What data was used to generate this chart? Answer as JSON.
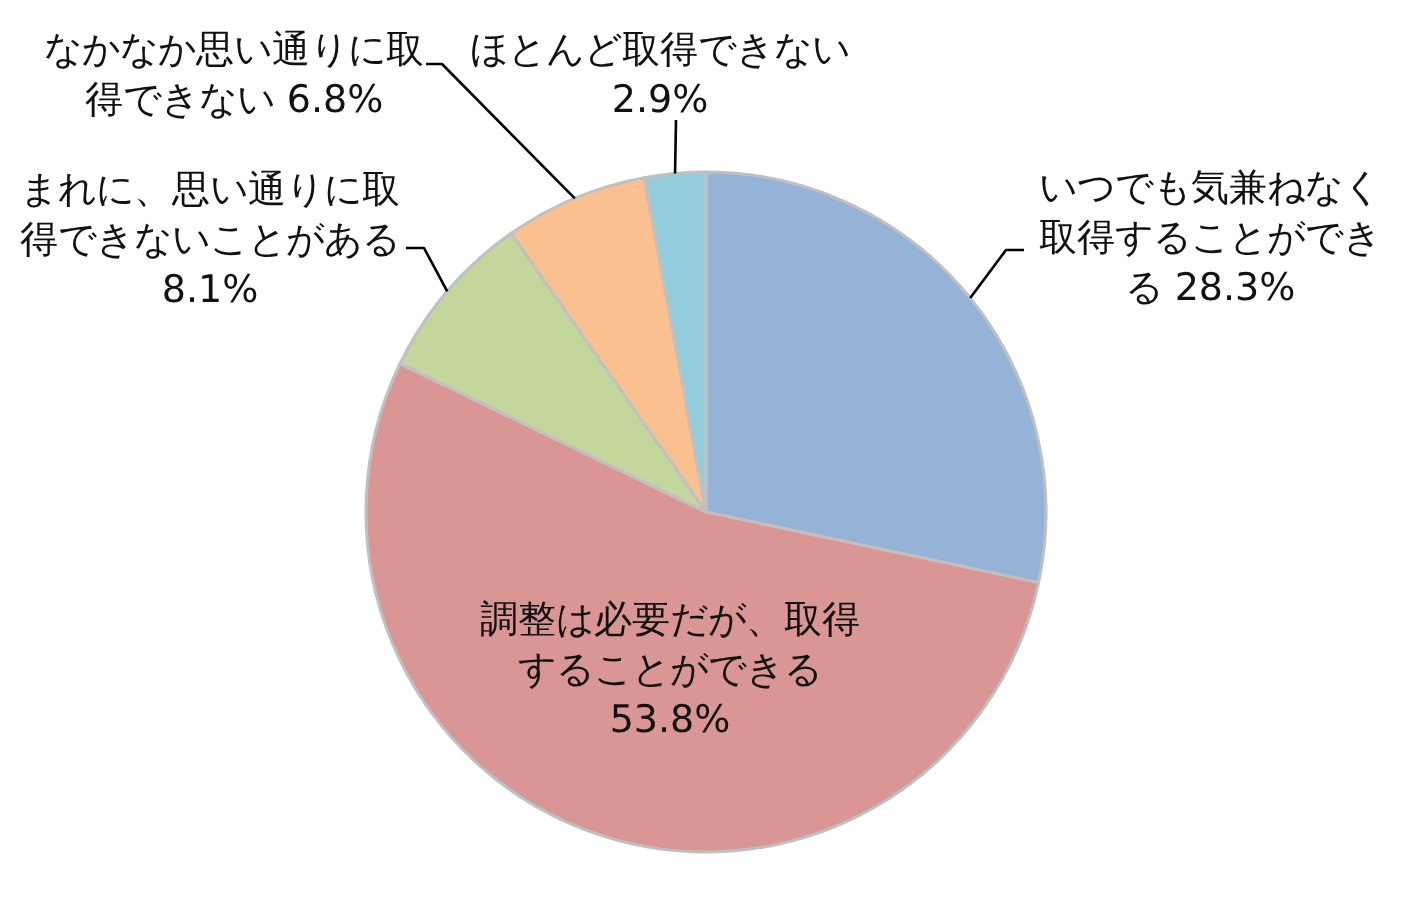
{
  "chart_data": {
    "type": "pie",
    "categories": [
      "いつでも気兼ねなく取得することができる",
      "調整は必要だが、取得することができる",
      "まれに、思い通りに取得できないことがある",
      "なかなか思い通りに取得できない",
      "ほとんど取得できない"
    ],
    "values": [
      28.3,
      53.8,
      8.1,
      6.8,
      2.9
    ],
    "value_labels": [
      "28.3%",
      "53.8%",
      "8.1%",
      "6.8%",
      "2.9%"
    ],
    "colors": [
      "#95b3d7",
      "#d99694",
      "#c3d69b",
      "#fac090",
      "#93cddd"
    ]
  }
}
